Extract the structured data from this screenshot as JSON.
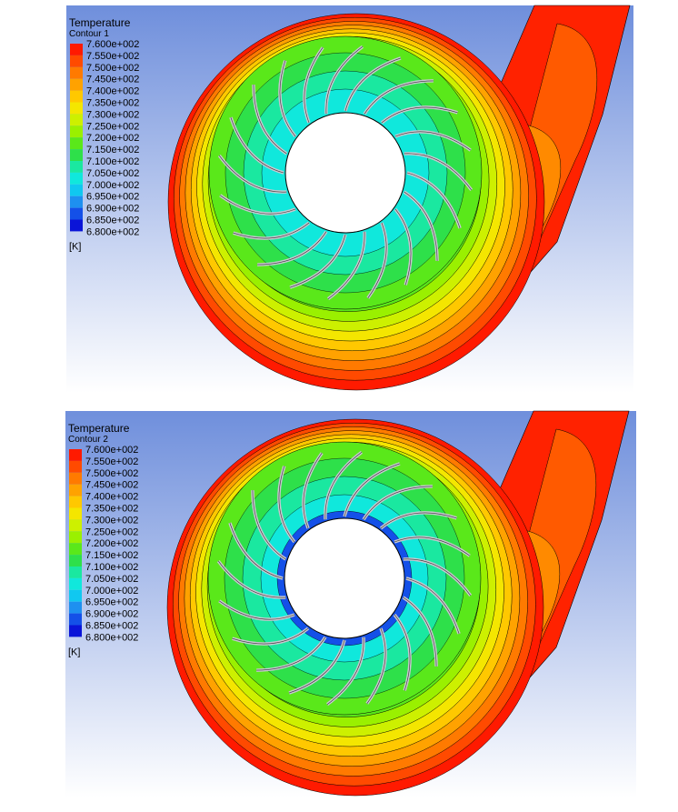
{
  "panels": [
    {
      "title": "Temperature",
      "subtitle": "Contour 1",
      "legend_labels": [
        "7.600e+002",
        "7.550e+002",
        "7.500e+002",
        "7.450e+002",
        "7.400e+002",
        "7.350e+002",
        "7.300e+002",
        "7.250e+002",
        "7.200e+002",
        "7.150e+002",
        "7.100e+002",
        "7.050e+002",
        "7.000e+002",
        "6.950e+002",
        "6.900e+002",
        "6.850e+002",
        "6.800e+002"
      ],
      "unit": "[K]"
    },
    {
      "title": "Temperature",
      "subtitle": "Contour 2",
      "legend_labels": [
        "7.600e+002",
        "7.550e+002",
        "7.500e+002",
        "7.450e+002",
        "7.400e+002",
        "7.350e+002",
        "7.300e+002",
        "7.250e+002",
        "7.200e+002",
        "7.150e+002",
        "7.100e+002",
        "7.050e+002",
        "7.000e+002",
        "6.950e+002",
        "6.900e+002",
        "6.850e+002",
        "6.800e+002"
      ],
      "unit": "[K]"
    }
  ]
}
